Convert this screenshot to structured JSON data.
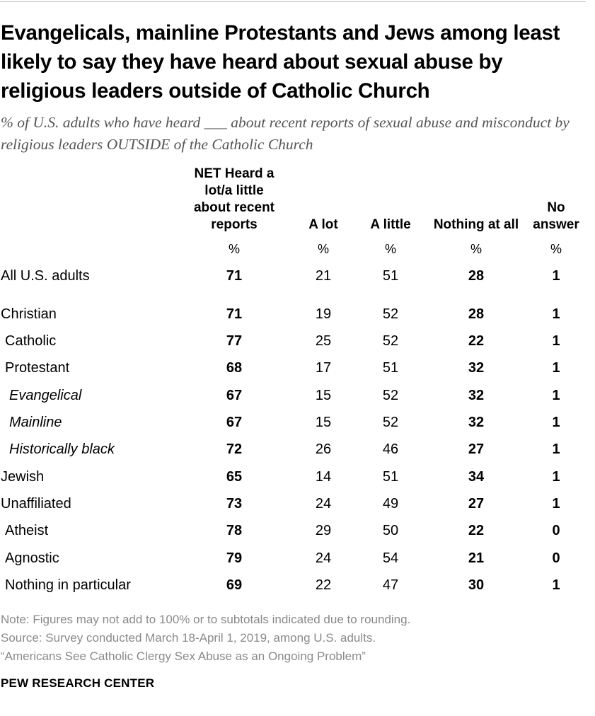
{
  "title": "Evangelicals, mainline Protestants and Jews among least likely to say they have heard about sexual abuse by religious leaders outside of Catholic Church",
  "subtitle": "% of U.S. adults who have heard ___ about recent reports of sexual abuse and misconduct by religious leaders OUTSIDE of the Catholic Church",
  "columns": [
    {
      "key": "net",
      "lines": [
        "NET Heard a",
        "lot/a little",
        "about recent",
        "reports"
      ],
      "unit": "%",
      "bold": true
    },
    {
      "key": "a_lot",
      "lines": [
        "A lot"
      ],
      "unit": "%",
      "bold": false
    },
    {
      "key": "a_little",
      "lines": [
        "A little"
      ],
      "unit": "%",
      "bold": false
    },
    {
      "key": "nothing",
      "lines": [
        "Nothing at all"
      ],
      "unit": "%",
      "bold": true
    },
    {
      "key": "no_answer",
      "lines": [
        "No",
        "answer"
      ],
      "unit": "%",
      "bold": true
    }
  ],
  "chart_data": {
    "type": "table",
    "headers": [
      "NET Heard a lot/a little about recent reports",
      "A lot",
      "A little",
      "Nothing at all",
      "No answer"
    ],
    "rows": [
      {
        "label": "All U.S. adults",
        "level": 0,
        "values": [
          71,
          21,
          51,
          28,
          1
        ]
      },
      {
        "label": "Christian",
        "level": 0,
        "values": [
          71,
          19,
          52,
          28,
          1
        ]
      },
      {
        "label": "Catholic",
        "level": 1,
        "values": [
          77,
          25,
          52,
          22,
          1
        ]
      },
      {
        "label": "Protestant",
        "level": 1,
        "values": [
          68,
          17,
          51,
          32,
          1
        ]
      },
      {
        "label": "Evangelical",
        "level": 2,
        "values": [
          67,
          15,
          52,
          32,
          1
        ]
      },
      {
        "label": "Mainline",
        "level": 2,
        "values": [
          67,
          15,
          52,
          32,
          1
        ]
      },
      {
        "label": "Historically black",
        "level": 2,
        "values": [
          72,
          26,
          46,
          27,
          1
        ]
      },
      {
        "label": "Jewish",
        "level": 0,
        "values": [
          65,
          14,
          51,
          34,
          1
        ]
      },
      {
        "label": "Unaffiliated",
        "level": 0,
        "values": [
          73,
          24,
          49,
          27,
          1
        ]
      },
      {
        "label": "Atheist",
        "level": 1,
        "values": [
          78,
          29,
          50,
          22,
          0
        ]
      },
      {
        "label": "Agnostic",
        "level": 1,
        "values": [
          79,
          24,
          54,
          21,
          0
        ]
      },
      {
        "label": "Nothing in particular",
        "level": 1,
        "values": [
          69,
          22,
          47,
          30,
          1
        ]
      }
    ]
  },
  "notes": [
    "Note: Figures may not add to 100% or to subtotals indicated due to rounding.",
    "Source: Survey conducted March 18-April 1, 2019, among U.S. adults.",
    "“Americans See Catholic Clergy Sex Abuse as an Ongoing Problem”"
  ],
  "brand": "PEW RESEARCH CENTER"
}
